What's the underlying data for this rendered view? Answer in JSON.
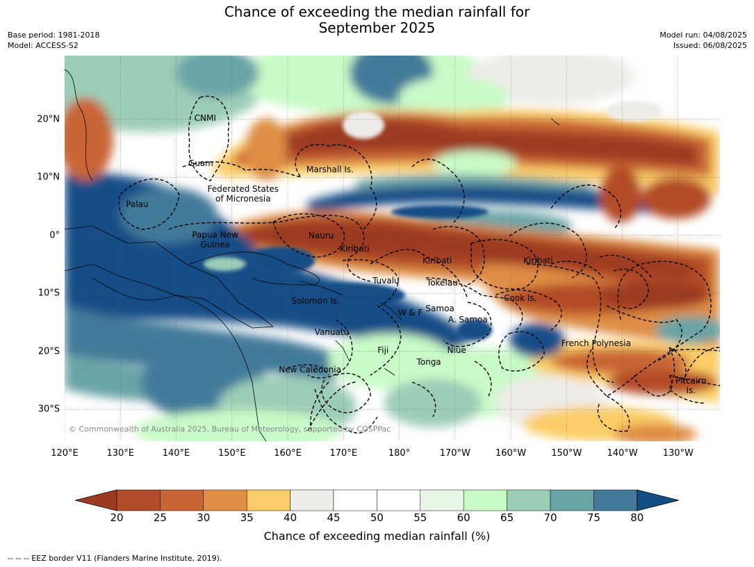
{
  "title": "Chance of exceeding the median rainfall for\nSeptember 2025",
  "meta_left": "Base period: 1981-2018\nModel: ACCESS-S2",
  "meta_right": "Model run: 04/08/2025\nIssued: 06/08/2025",
  "map": {
    "copyright": "© Commonwealth of Australia 2025, Bureau of Meteorology, supported by COSPPac",
    "lat_labels": [
      {
        "text": "20°N",
        "lat": 20
      },
      {
        "text": "10°N",
        "lat": 10
      },
      {
        "text": "0°",
        "lat": 0
      },
      {
        "text": "10°S",
        "lat": -10
      },
      {
        "text": "20°S",
        "lat": -20
      },
      {
        "text": "30°S",
        "lat": -30
      }
    ],
    "lon_labels": [
      {
        "text": "120°E",
        "lon": 120
      },
      {
        "text": "130°E",
        "lon": 130
      },
      {
        "text": "140°E",
        "lon": 140
      },
      {
        "text": "150°E",
        "lon": 150
      },
      {
        "text": "160°E",
        "lon": 160
      },
      {
        "text": "170°E",
        "lon": 170
      },
      {
        "text": "180°",
        "lon": 180
      },
      {
        "text": "170°W",
        "lon": 190
      },
      {
        "text": "160°W",
        "lon": 200
      },
      {
        "text": "150°W",
        "lon": 210
      },
      {
        "text": "140°W",
        "lon": 220
      },
      {
        "text": "130°W",
        "lon": 230
      }
    ],
    "regions": [
      {
        "name": "CNMI",
        "lon": 145.2,
        "lat": 20.2
      },
      {
        "name": "Guam",
        "lon": 144.4,
        "lat": 12.4
      },
      {
        "name": "Marshall Is.",
        "lon": 167.6,
        "lat": 11.3
      },
      {
        "name": "Federated States\nof Micronesia",
        "lon": 152.0,
        "lat": 7.2
      },
      {
        "name": "Palau",
        "lon": 133.0,
        "lat": 5.3
      },
      {
        "name": "Nauru",
        "lon": 166.0,
        "lat": 0.0
      },
      {
        "name": "Papua New\nGuinea",
        "lon": 147.0,
        "lat": -0.7
      },
      {
        "name": "Kiribati",
        "lon": 172.0,
        "lat": -2.3
      },
      {
        "name": "Kiribati",
        "lon": 186.8,
        "lat": -4.3
      },
      {
        "name": "Kiribati",
        "lon": 204.9,
        "lat": -4.3
      },
      {
        "name": "Tuvalu",
        "lon": 177.6,
        "lat": -7.8
      },
      {
        "name": "Tokelau",
        "lon": 187.7,
        "lat": -8.2
      },
      {
        "name": "Cook Is.",
        "lon": 201.7,
        "lat": -10.8
      },
      {
        "name": "Solomon Is.",
        "lon": 165.0,
        "lat": -11.3
      },
      {
        "name": "Samoa",
        "lon": 187.3,
        "lat": -12.6
      },
      {
        "name": "W & F",
        "lon": 182.0,
        "lat": -13.3
      },
      {
        "name": "A. Samoa",
        "lon": 192.3,
        "lat": -14.5
      },
      {
        "name": "Vanuatu",
        "lon": 167.9,
        "lat": -16.7
      },
      {
        "name": "French Polynesia",
        "lon": 215.3,
        "lat": -18.6
      },
      {
        "name": "Fiji",
        "lon": 177.1,
        "lat": -19.8
      },
      {
        "name": "Niue",
        "lon": 190.3,
        "lat": -19.8
      },
      {
        "name": "Tonga",
        "lon": 185.3,
        "lat": -21.8
      },
      {
        "name": "New Caledonia",
        "lon": 164.0,
        "lat": -23.1
      },
      {
        "name": "Pitcairn\nIs.",
        "lon": 232.3,
        "lat": -25.9
      }
    ]
  },
  "colorbar": {
    "label": "Chance of exceeding median rainfall (%)",
    "ticks": [
      "20",
      "25",
      "30",
      "35",
      "40",
      "45",
      "50",
      "55",
      "60",
      "65",
      "70",
      "75",
      "80"
    ],
    "colors": [
      "#9c3a22",
      "#b34c28",
      "#c96534",
      "#de8e45",
      "#fbcd68",
      "#eeece8",
      "#ffffff",
      "#ffffff",
      "#e7f5e5",
      "#c9fbc8",
      "#9ccdb7",
      "#6ba4a6",
      "#437a9a",
      "#134d86"
    ]
  },
  "footnote": "--  --  -- EEZ border V11 (Flanders Marine Institute, 2019)."
}
